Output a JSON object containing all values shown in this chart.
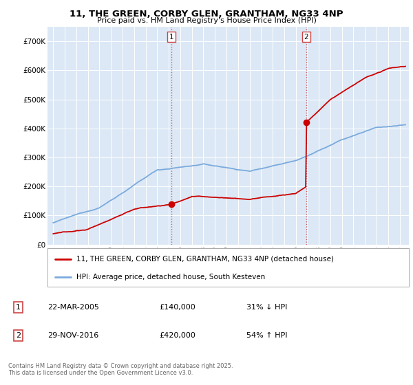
{
  "title": "11, THE GREEN, CORBY GLEN, GRANTHAM, NG33 4NP",
  "subtitle": "Price paid vs. HM Land Registry's House Price Index (HPI)",
  "plot_bg_color": "#dce8f5",
  "sale1_date": "22-MAR-2005",
  "sale1_price": 140000,
  "sale1_label": "31% ↓ HPI",
  "sale1_x": 2005.22,
  "sale2_date": "29-NOV-2016",
  "sale2_price": 420000,
  "sale2_label": "54% ↑ HPI",
  "sale2_x": 2016.91,
  "ylabel_ticks": [
    "£0",
    "£100K",
    "£200K",
    "£300K",
    "£400K",
    "£500K",
    "£600K",
    "£700K"
  ],
  "ytick_vals": [
    0,
    100000,
    200000,
    300000,
    400000,
    500000,
    600000,
    700000
  ],
  "ylim": [
    0,
    750000
  ],
  "xlim_start": 1994.5,
  "xlim_end": 2025.8,
  "legend_line1": "11, THE GREEN, CORBY GLEN, GRANTHAM, NG33 4NP (detached house)",
  "legend_line2": "HPI: Average price, detached house, South Kesteven",
  "footer": "Contains HM Land Registry data © Crown copyright and database right 2025.\nThis data is licensed under the Open Government Licence v3.0.",
  "red_color": "#cc0000",
  "blue_color": "#7aaadd",
  "dashed_color": "#cc4444"
}
